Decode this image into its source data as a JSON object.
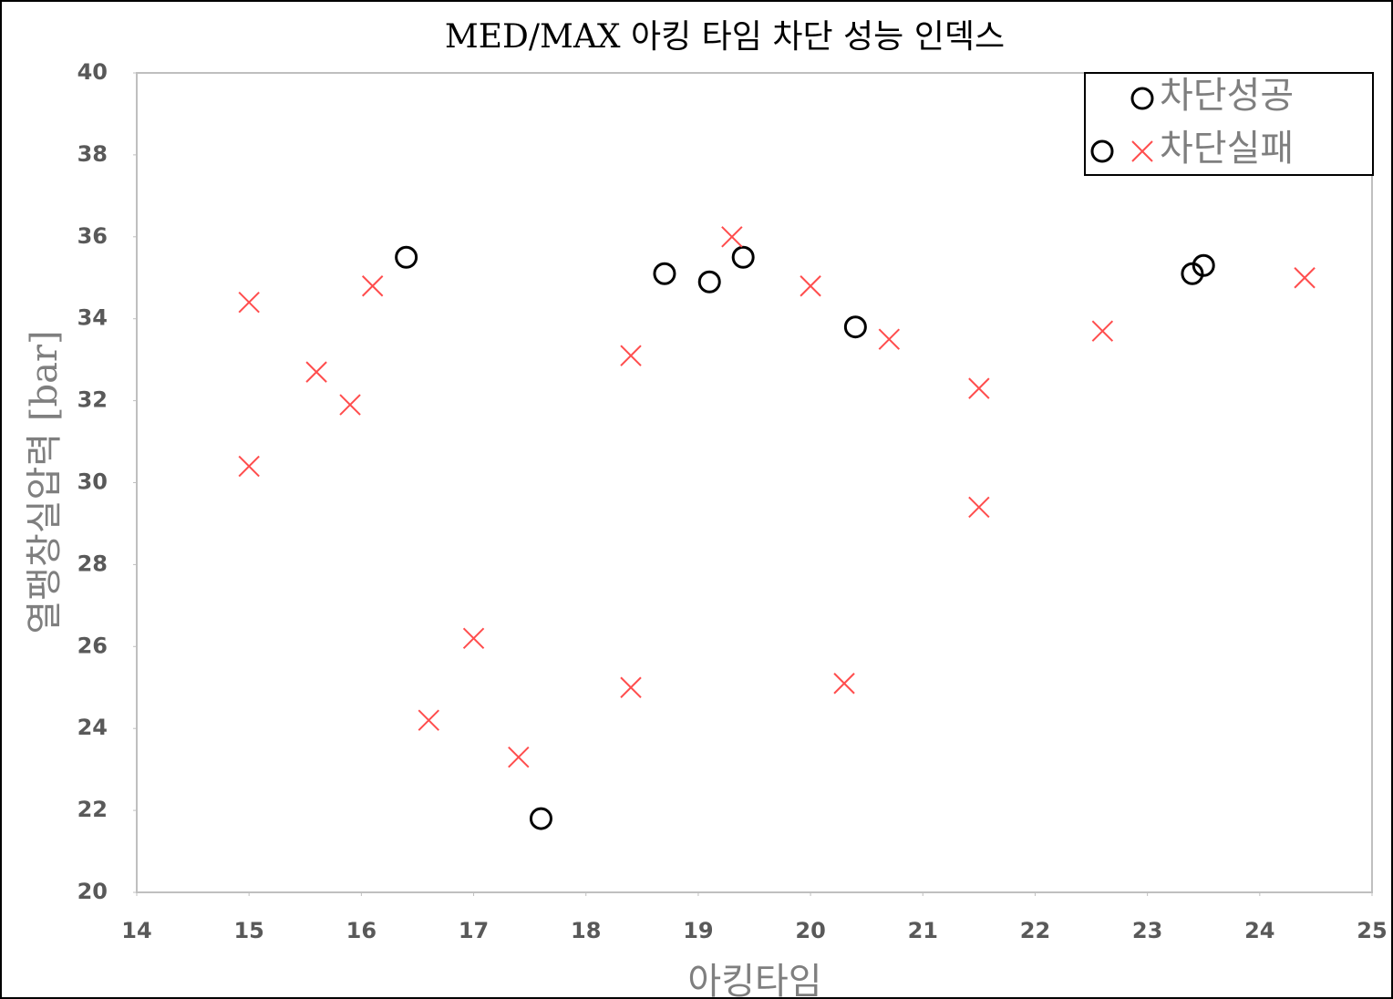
{
  "chart_data": {
    "type": "scatter",
    "title": "MED/MAX 아킹 타임 차단 성능 인덱스",
    "x_label": "아킹타임",
    "y_label": "열팽창실압력 [bar]",
    "xlim": [
      14,
      25
    ],
    "xticks": [
      14,
      15,
      16,
      17,
      18,
      19,
      20,
      21,
      22,
      23,
      24,
      25
    ],
    "ylim": [
      20,
      40
    ],
    "yticks": [
      20,
      22,
      24,
      26,
      28,
      30,
      32,
      34,
      36,
      38,
      40
    ],
    "legend": "top-right",
    "series": [
      {
        "name": "차단성공",
        "marker": "circle",
        "color": "#000000",
        "x": [
          16.4,
          18.7,
          19.1,
          19.4,
          20.4,
          23.4,
          23.5,
          17.6
        ],
        "values": [
          35.5,
          35.1,
          34.9,
          35.5,
          33.8,
          35.1,
          35.3,
          21.8
        ]
      },
      {
        "name": "차단실패",
        "marker": "cross",
        "color": "#ff4d4d",
        "x": [
          15.0,
          15.0,
          15.6,
          15.9,
          16.1,
          16.6,
          17.0,
          17.4,
          18.4,
          18.4,
          19.3,
          20.0,
          20.3,
          20.7,
          21.5,
          21.5,
          22.6,
          24.4
        ],
        "values": [
          34.4,
          30.4,
          32.7,
          31.9,
          34.8,
          24.2,
          26.2,
          23.3,
          33.1,
          25.0,
          36.0,
          34.8,
          25.1,
          33.5,
          32.3,
          29.4,
          33.7,
          35.0
        ]
      }
    ]
  }
}
